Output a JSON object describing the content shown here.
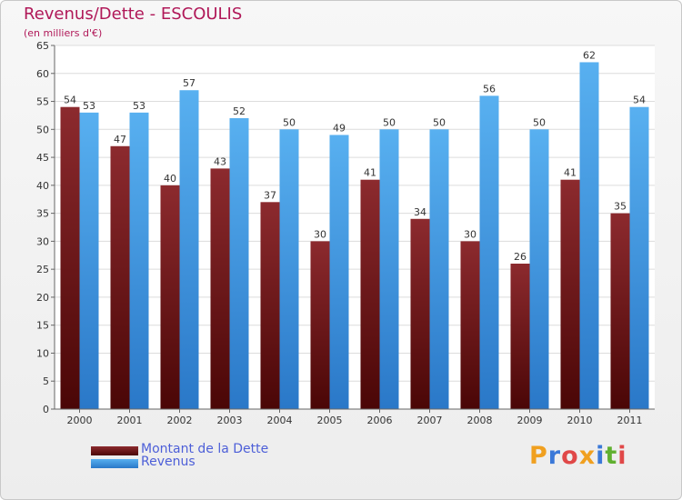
{
  "header": {
    "title": "Revenus/Dette - ESCOULIS",
    "subtitle": "(en milliers d'€)"
  },
  "chart_data": {
    "type": "bar",
    "title": "Revenus/Dette - ESCOULIS",
    "subtitle": "(en milliers d'€)",
    "xlabel": "",
    "ylabel": "",
    "categories": [
      "2000",
      "2001",
      "2002",
      "2003",
      "2004",
      "2005",
      "2006",
      "2007",
      "2008",
      "2009",
      "2010",
      "2011"
    ],
    "series": [
      {
        "name": "Montant de la Dette",
        "color": "#7a1a1e",
        "values": [
          54,
          47,
          40,
          43,
          37,
          30,
          41,
          34,
          30,
          26,
          41,
          35
        ]
      },
      {
        "name": "Revenus",
        "color": "#3e9be6",
        "values": [
          53,
          53,
          57,
          52,
          50,
          49,
          50,
          50,
          56,
          50,
          62,
          54
        ]
      }
    ],
    "ylim": [
      0,
      65
    ],
    "yticks": [
      0,
      5,
      10,
      15,
      20,
      25,
      30,
      35,
      40,
      45,
      50,
      55,
      60,
      65
    ],
    "grid": true,
    "legend": "bottom-left"
  },
  "legend": {
    "items": [
      {
        "label": "Montant de la Dette",
        "color": "#7a1a1e"
      },
      {
        "label": "Revenus",
        "color": "#3e9be6"
      }
    ]
  },
  "logo": {
    "text": "Proxiti",
    "letters": [
      "P",
      "r",
      "o",
      "x",
      "i",
      "t",
      "i"
    ],
    "colors": [
      "#f0a020",
      "#3a78d8",
      "#e04848",
      "#f0a020",
      "#3a78d8",
      "#60b030",
      "#e04848"
    ]
  }
}
